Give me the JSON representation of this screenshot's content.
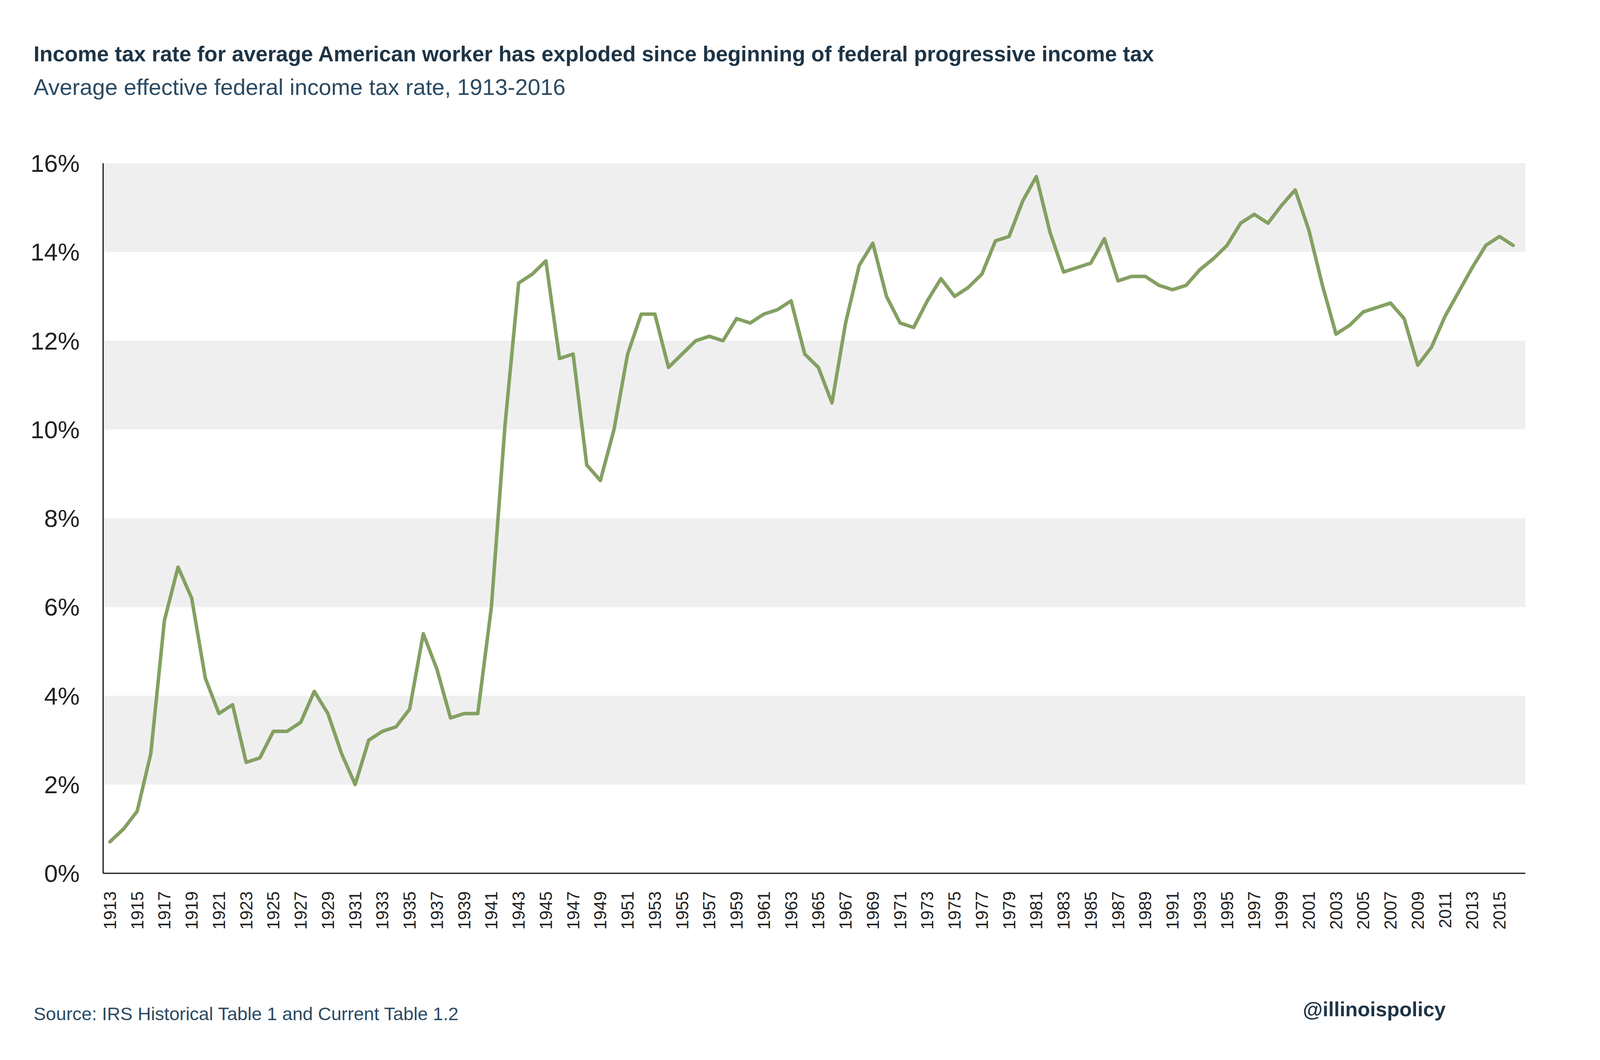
{
  "chart_data": {
    "type": "line",
    "title": "Income tax rate for average American worker has exploded since beginning of federal progressive income tax",
    "subtitle": "Average effective federal income tax rate, 1913-2016",
    "source": "Source: IRS Historical Table 1 and Current Table 1.2",
    "credit": "@illinoispolicy",
    "x": [
      1913,
      1914,
      1915,
      1916,
      1917,
      1918,
      1919,
      1920,
      1921,
      1922,
      1923,
      1924,
      1925,
      1926,
      1927,
      1928,
      1929,
      1930,
      1931,
      1932,
      1933,
      1934,
      1935,
      1936,
      1937,
      1938,
      1939,
      1940,
      1941,
      1942,
      1943,
      1944,
      1945,
      1946,
      1947,
      1948,
      1949,
      1950,
      1951,
      1952,
      1953,
      1954,
      1955,
      1956,
      1957,
      1958,
      1959,
      1960,
      1961,
      1962,
      1963,
      1964,
      1965,
      1966,
      1967,
      1968,
      1969,
      1970,
      1971,
      1972,
      1973,
      1974,
      1975,
      1976,
      1977,
      1978,
      1979,
      1980,
      1981,
      1982,
      1983,
      1984,
      1985,
      1986,
      1987,
      1988,
      1989,
      1990,
      1991,
      1992,
      1993,
      1994,
      1995,
      1996,
      1997,
      1998,
      1999,
      2000,
      2001,
      2002,
      2003,
      2004,
      2005,
      2006,
      2007,
      2008,
      2009,
      2010,
      2011,
      2012,
      2013,
      2014,
      2015,
      2016
    ],
    "values": [
      0.71,
      1.0,
      1.4,
      2.7,
      5.7,
      6.9,
      6.2,
      4.4,
      3.6,
      3.8,
      2.5,
      2.6,
      3.2,
      3.2,
      3.4,
      4.1,
      3.6,
      2.7,
      2.0,
      3.0,
      3.2,
      3.3,
      3.7,
      5.4,
      4.6,
      3.5,
      3.6,
      3.6,
      6.0,
      10.1,
      13.3,
      13.5,
      13.8,
      11.6,
      11.7,
      9.2,
      8.85,
      10.0,
      11.7,
      12.6,
      12.6,
      11.4,
      11.7,
      12.0,
      12.1,
      12.0,
      12.5,
      12.4,
      12.6,
      12.7,
      12.9,
      11.7,
      11.4,
      10.6,
      12.4,
      13.7,
      14.2,
      13.0,
      12.4,
      12.3,
      12.9,
      13.4,
      13.0,
      13.2,
      13.5,
      14.25,
      14.35,
      15.15,
      15.7,
      14.45,
      13.55,
      13.65,
      13.75,
      14.3,
      13.35,
      13.45,
      13.45,
      13.25,
      13.15,
      13.25,
      13.6,
      13.85,
      14.15,
      14.65,
      14.85,
      14.65,
      15.05,
      15.4,
      14.5,
      13.25,
      12.15,
      12.35,
      12.65,
      12.75,
      12.85,
      12.5,
      11.45,
      11.85,
      12.55,
      13.1,
      13.65,
      14.15,
      14.35,
      14.15
    ],
    "color": "#84a062",
    "xlim": [
      1912.5,
      2016.9
    ],
    "xticks": [
      1913,
      1915,
      1917,
      1919,
      1921,
      1923,
      1925,
      1927,
      1929,
      1931,
      1933,
      1935,
      1937,
      1939,
      1941,
      1943,
      1945,
      1947,
      1949,
      1951,
      1953,
      1955,
      1957,
      1959,
      1961,
      1963,
      1965,
      1967,
      1969,
      1971,
      1973,
      1975,
      1977,
      1979,
      1981,
      1983,
      1985,
      1987,
      1989,
      1991,
      1993,
      1995,
      1997,
      1999,
      2001,
      2003,
      2005,
      2007,
      2009,
      2011,
      2013,
      2015
    ],
    "ylim": [
      0,
      16
    ],
    "yticks": [
      {
        "value": 0,
        "label": "0%"
      },
      {
        "value": 2,
        "label": "2%"
      },
      {
        "value": 4,
        "label": "4%"
      },
      {
        "value": 6,
        "label": "6%"
      },
      {
        "value": 8,
        "label": "8%"
      },
      {
        "value": 10,
        "label": "10%"
      },
      {
        "value": 12,
        "label": "12%"
      },
      {
        "value": 14,
        "label": "14%"
      },
      {
        "value": 16,
        "label": "16%"
      }
    ],
    "grid": true
  }
}
